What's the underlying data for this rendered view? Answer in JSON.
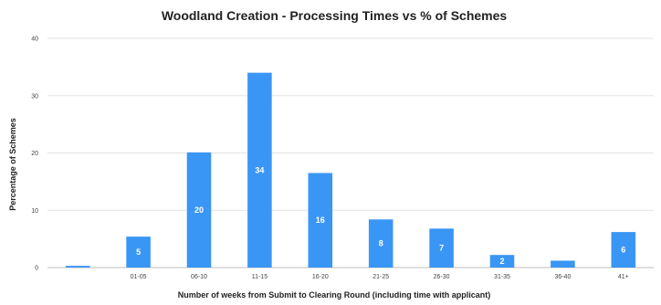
{
  "chart_data": {
    "type": "bar",
    "title": "Woodland Creation - Processing Times vs % of Schemes",
    "xlabel": "Number of weeks from Submit to Clearing Round (including time with applicant)",
    "ylabel": "Percentage of Schemes",
    "ylim": [
      0,
      40
    ],
    "yticks": [
      0,
      10,
      20,
      30,
      40
    ],
    "categories": [
      "",
      "01-05",
      "06-10",
      "11-15",
      "16-20",
      "21-25",
      "26-30",
      "31-35",
      "36-40",
      "41+"
    ],
    "values": [
      0.3,
      5.4,
      20.1,
      34.0,
      16.5,
      8.4,
      6.8,
      2.2,
      1.2,
      6.2
    ],
    "data_labels": [
      "",
      "5",
      "20",
      "34",
      "16",
      "8",
      "7",
      "2",
      "",
      "6"
    ],
    "bar_color": "#3a96f5",
    "grid": true,
    "legend": "none"
  }
}
